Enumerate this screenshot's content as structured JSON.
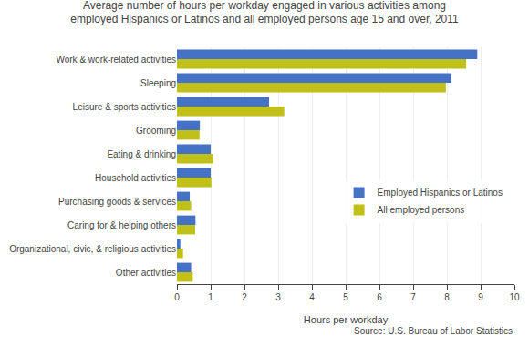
{
  "chart_data": {
    "type": "bar",
    "orientation": "horizontal",
    "title": "Average number of hours per workday engaged in various activities among\nemployed Hispanics or Latinos and all employed persons age 15 and over, 2011",
    "categories": [
      "Work & work-related activities",
      "Sleeping",
      "Leisure & sports activities",
      "Grooming",
      "Eating & drinking",
      "Household activities",
      "Purchasing goods & services",
      "Caring for & helping others",
      "Organizational, civic, & religious activities",
      "Other activities"
    ],
    "series": [
      {
        "name": "Employed Hispanics or Latinos",
        "color": "#4472c4",
        "values": [
          8.9,
          8.13,
          2.73,
          0.68,
          1.0,
          1.0,
          0.38,
          0.55,
          0.1,
          0.42
        ]
      },
      {
        "name": "All employed persons",
        "color": "#c0c019",
        "values": [
          8.57,
          7.97,
          3.18,
          0.67,
          1.07,
          1.02,
          0.42,
          0.54,
          0.18,
          0.47
        ]
      }
    ],
    "xlabel": "Hours per workday",
    "xlim": [
      0,
      10
    ],
    "xticks": [
      0,
      1,
      2,
      3,
      4,
      5,
      6,
      7,
      8,
      9,
      10
    ],
    "grid": true,
    "legend": "right",
    "annotations": [
      "Source: U.S. Bureau of Labor Statistics"
    ]
  }
}
